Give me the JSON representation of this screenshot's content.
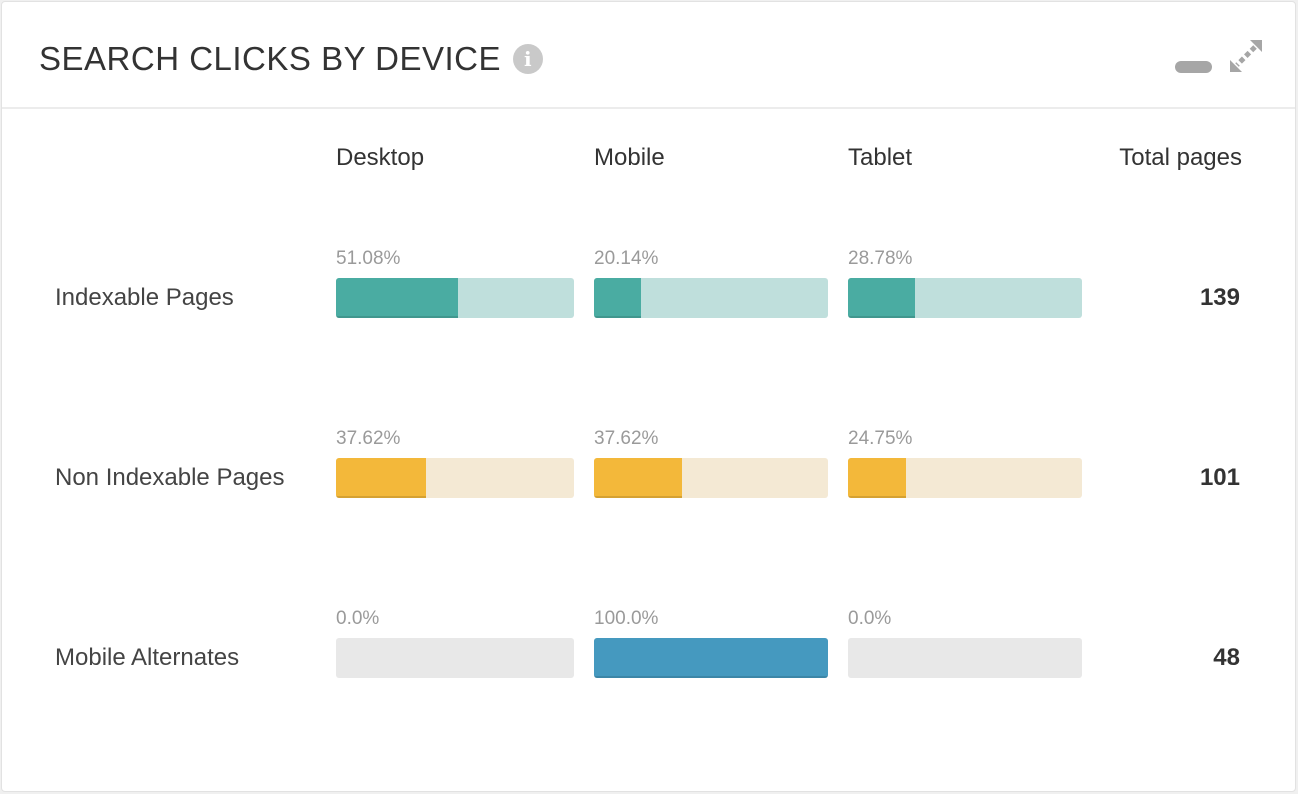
{
  "header": {
    "title": "SEARCH CLICKS BY DEVICE",
    "info_icon": "info-icon",
    "minimize_icon": "minimize-icon",
    "expand_icon": "expand-icon"
  },
  "columns": [
    "Desktop",
    "Mobile",
    "Tablet",
    "Total pages"
  ],
  "rows": [
    {
      "label": "Indexable Pages",
      "total": "139",
      "color": "#4aaca2",
      "track": "#bfdfdc",
      "cells": [
        {
          "text": "51.08%",
          "value": 51.08
        },
        {
          "text": "20.14%",
          "value": 20.14
        },
        {
          "text": "28.78%",
          "value": 28.78
        }
      ]
    },
    {
      "label": "Non Indexable Pages",
      "total": "101",
      "color": "#f3b83a",
      "track": "#f4e9d4",
      "cells": [
        {
          "text": "37.62%",
          "value": 37.62
        },
        {
          "text": "37.62%",
          "value": 37.62
        },
        {
          "text": "24.75%",
          "value": 24.75
        }
      ]
    },
    {
      "label": "Mobile Alternates",
      "total": "48",
      "color": "#4599bf",
      "track": "#e8e8e8",
      "cells": [
        {
          "text": "0.0%",
          "value": 0
        },
        {
          "text": "100.0%",
          "value": 100
        },
        {
          "text": "0.0%",
          "value": 0
        }
      ]
    }
  ]
}
